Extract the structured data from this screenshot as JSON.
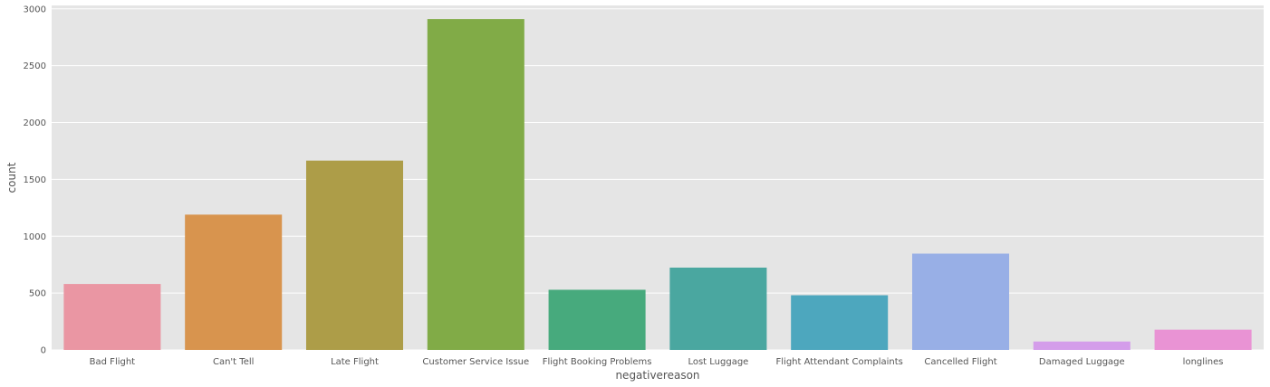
{
  "chart_data": {
    "type": "bar",
    "title": "",
    "xlabel": "negativereason",
    "ylabel": "count",
    "categories": [
      "Bad Flight",
      "Can't Tell",
      "Late Flight",
      "Customer Service Issue",
      "Flight Booking Problems",
      "Lost Luggage",
      "Flight Attendant Complaints",
      "Cancelled Flight",
      "Damaged Luggage",
      "longlines"
    ],
    "values": [
      580,
      1190,
      1665,
      2910,
      529,
      724,
      481,
      847,
      74,
      178
    ],
    "colors": [
      "#EA96A3",
      "#D8944E",
      "#AD9D48",
      "#81AB47",
      "#47AA7D",
      "#4AA7A0",
      "#4DA7BE",
      "#98AFE6",
      "#D49DEA",
      "#E993D4"
    ],
    "ylim": [
      0,
      3030
    ],
    "yticks": [
      0,
      500,
      1000,
      1500,
      2000,
      2500,
      3000
    ],
    "grid": true,
    "style": {
      "background": "#E5E5E5",
      "grid_color": "#FFFFFF",
      "text_color": "#555555"
    }
  }
}
